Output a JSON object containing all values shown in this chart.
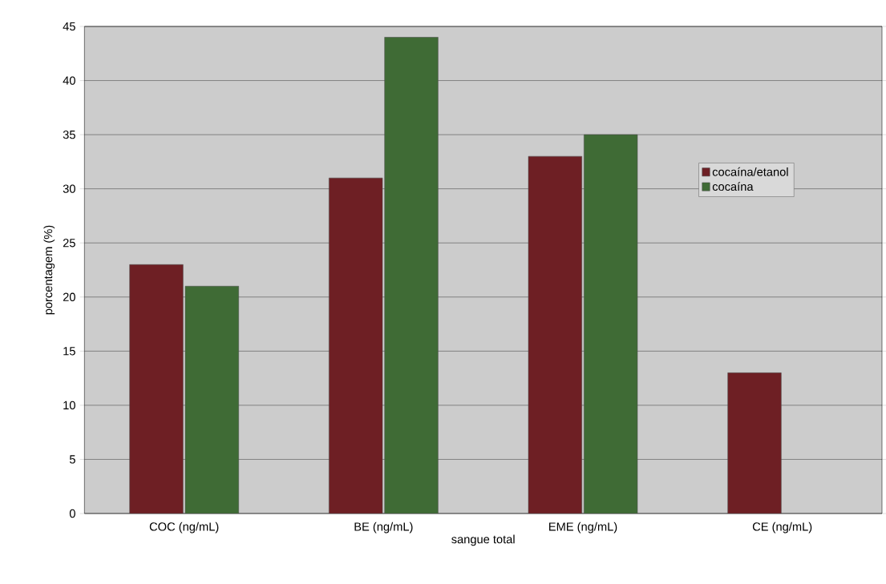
{
  "chart_data": {
    "type": "bar",
    "xlabel": "sangue total",
    "ylabel": "porcentagem (%)",
    "categories": [
      "COC (ng/mL)",
      "BE (ng/mL)",
      "EME (ng/mL)",
      "CE (ng/mL)"
    ],
    "series": [
      {
        "name": "cocaína/etanol",
        "color": "#6e1f24",
        "values": [
          23,
          31,
          33,
          13
        ]
      },
      {
        "name": "cocaína",
        "color": "#3f6b35",
        "values": [
          21,
          44,
          35,
          null
        ]
      }
    ],
    "ylim": [
      0,
      45
    ],
    "yticks": [
      0,
      5,
      10,
      15,
      20,
      25,
      30,
      35,
      40,
      45
    ],
    "grid": "y",
    "legend": "right"
  }
}
